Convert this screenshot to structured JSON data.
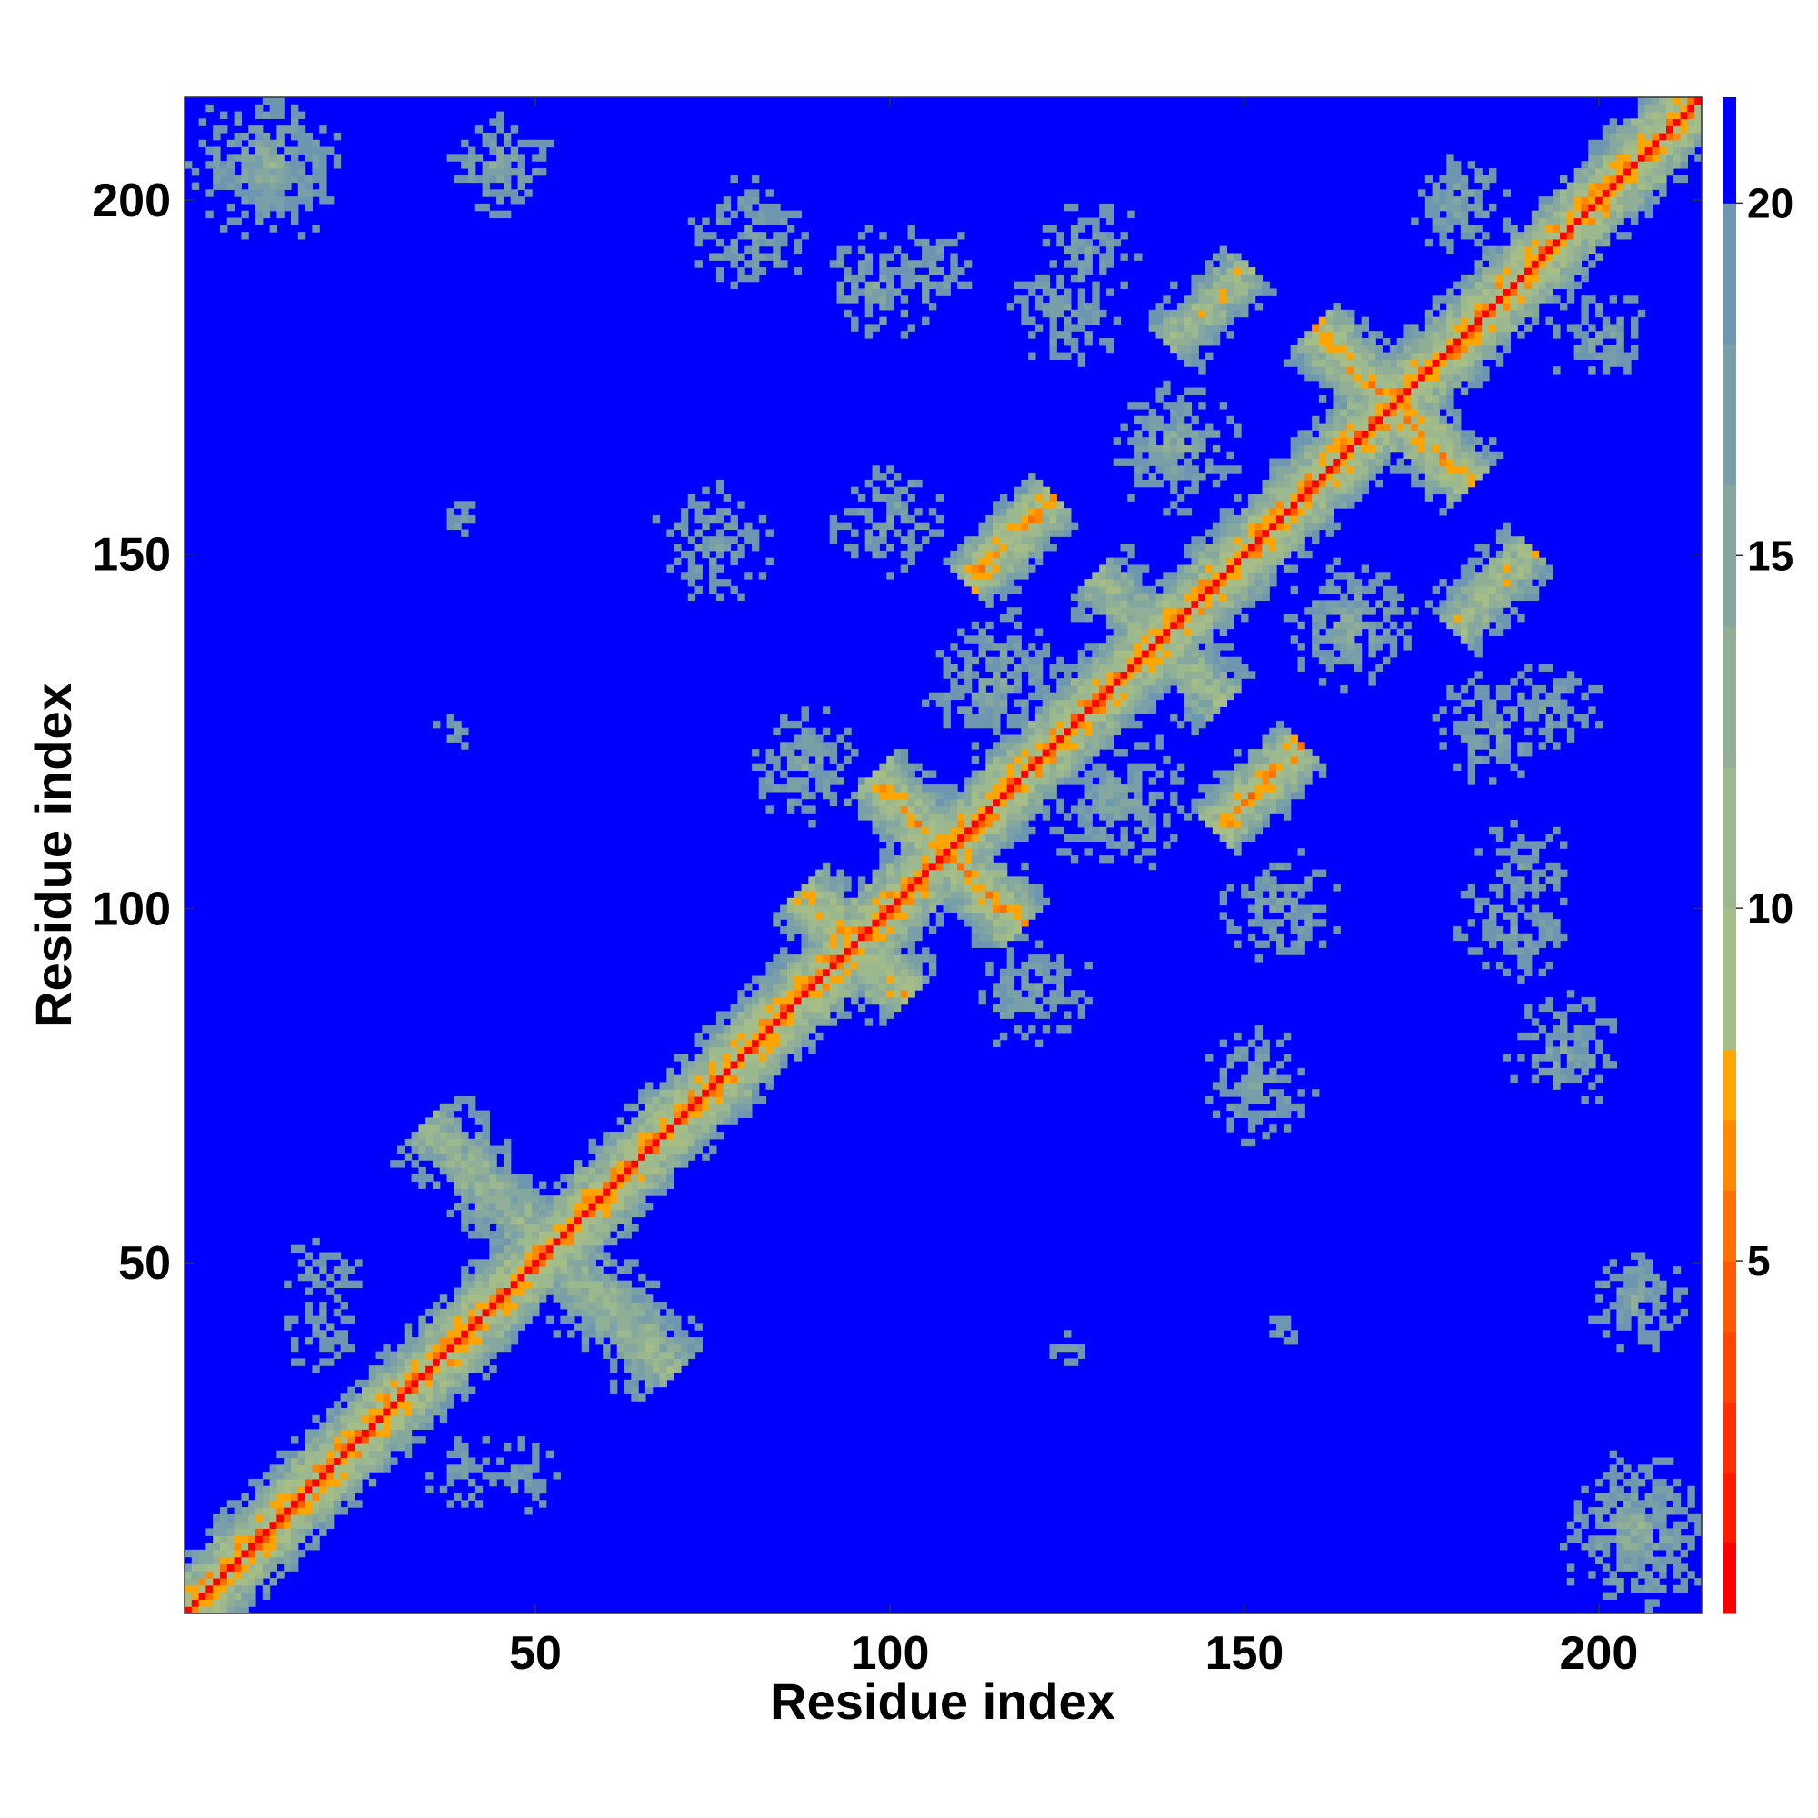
{
  "chart_data": {
    "type": "heatmap",
    "title": "",
    "xlabel": "Residue index",
    "ylabel": "Residue index",
    "x_range": [
      1,
      214
    ],
    "y_range": [
      1,
      214
    ],
    "x_ticks": [
      50,
      100,
      150,
      200
    ],
    "y_ticks": [
      50,
      100,
      150,
      200
    ],
    "colorbar": {
      "range": [
        0,
        21.5
      ],
      "ticks": [
        5,
        10,
        15,
        20
      ],
      "bands": [
        {
          "from": 0,
          "to": 1,
          "color": "#ff0000"
        },
        {
          "from": 1,
          "to": 2,
          "color": "#ff1a00"
        },
        {
          "from": 2,
          "to": 3,
          "color": "#ff2e00"
        },
        {
          "from": 3,
          "to": 4,
          "color": "#ff4500"
        },
        {
          "from": 4,
          "to": 5,
          "color": "#ff5a00"
        },
        {
          "from": 5,
          "to": 6,
          "color": "#ff7000"
        },
        {
          "from": 6,
          "to": 7,
          "color": "#ff8a00"
        },
        {
          "from": 7,
          "to": 8,
          "color": "#ffa500"
        },
        {
          "from": 8,
          "to": 10,
          "color": "#a6bd86"
        },
        {
          "from": 10,
          "to": 12,
          "color": "#9cb88e"
        },
        {
          "from": 12,
          "to": 14,
          "color": "#90af96"
        },
        {
          "from": 14,
          "to": 16,
          "color": "#84a79f"
        },
        {
          "from": 16,
          "to": 18,
          "color": "#799fa8"
        },
        {
          "from": 18,
          "to": 20,
          "color": "#6d96b1"
        },
        {
          "from": 20,
          "to": 21.5,
          "color": "#0000ff"
        }
      ]
    },
    "background_color": "#0000ff",
    "contact_regions": [
      {
        "kind": "diagonal",
        "from": 1,
        "to": 214,
        "width": 10,
        "strength": 1.0
      },
      {
        "kind": "anti",
        "center": [
          52,
          52
        ],
        "length": 50,
        "width": 8,
        "strength": 0.55
      },
      {
        "kind": "anti",
        "center": [
          95,
          95
        ],
        "length": 22,
        "width": 7,
        "strength": 0.8
      },
      {
        "kind": "anti",
        "center": [
          108,
          108
        ],
        "length": 30,
        "width": 7,
        "strength": 0.85
      },
      {
        "kind": "anti",
        "center": [
          171,
          171
        ],
        "length": 32,
        "width": 7,
        "strength": 0.85
      },
      {
        "kind": "anti",
        "center": [
          138,
          138
        ],
        "length": 26,
        "width": 7,
        "strength": 0.6
      },
      {
        "kind": "parallel",
        "center": [
          152,
          117
        ],
        "length": 18,
        "width": 6,
        "strength": 0.9
      },
      {
        "kind": "parallel",
        "center": [
          117,
          152
        ],
        "length": 18,
        "width": 6,
        "strength": 0.9
      },
      {
        "kind": "parallel",
        "center": [
          185,
          145
        ],
        "length": 16,
        "width": 6,
        "strength": 0.7
      },
      {
        "kind": "parallel",
        "center": [
          145,
          185
        ],
        "length": 16,
        "width": 6,
        "strength": 0.7
      },
      {
        "kind": "blob",
        "center": [
          12,
          205
        ],
        "radius": 12,
        "strength": 0.45
      },
      {
        "kind": "blob",
        "center": [
          205,
          12
        ],
        "radius": 12,
        "strength": 0.45
      },
      {
        "kind": "blob",
        "center": [
          45,
          205
        ],
        "radius": 8,
        "strength": 0.4
      },
      {
        "kind": "blob",
        "center": [
          205,
          45
        ],
        "radius": 8,
        "strength": 0.4
      },
      {
        "kind": "blob",
        "center": [
          80,
          195
        ],
        "radius": 9,
        "strength": 0.35
      },
      {
        "kind": "blob",
        "center": [
          195,
          80
        ],
        "radius": 9,
        "strength": 0.35
      },
      {
        "kind": "blob",
        "center": [
          105,
          190
        ],
        "radius": 8,
        "strength": 0.3
      },
      {
        "kind": "blob",
        "center": [
          190,
          105
        ],
        "radius": 8,
        "strength": 0.3
      },
      {
        "kind": "blob",
        "center": [
          125,
          185
        ],
        "radius": 9,
        "strength": 0.35
      },
      {
        "kind": "blob",
        "center": [
          185,
          125
        ],
        "radius": 9,
        "strength": 0.35
      },
      {
        "kind": "blob",
        "center": [
          140,
          165
        ],
        "radius": 10,
        "strength": 0.45
      },
      {
        "kind": "blob",
        "center": [
          165,
          140
        ],
        "radius": 10,
        "strength": 0.45
      },
      {
        "kind": "blob",
        "center": [
          115,
          132
        ],
        "radius": 11,
        "strength": 0.4
      },
      {
        "kind": "blob",
        "center": [
          132,
          115
        ],
        "radius": 11,
        "strength": 0.4
      },
      {
        "kind": "blob",
        "center": [
          88,
          120
        ],
        "radius": 9,
        "strength": 0.35
      },
      {
        "kind": "blob",
        "center": [
          120,
          88
        ],
        "radius": 9,
        "strength": 0.35
      },
      {
        "kind": "blob",
        "center": [
          75,
          152
        ],
        "radius": 9,
        "strength": 0.35
      },
      {
        "kind": "blob",
        "center": [
          152,
          75
        ],
        "radius": 9,
        "strength": 0.35
      },
      {
        "kind": "blob",
        "center": [
          155,
          100
        ],
        "radius": 9,
        "strength": 0.35
      },
      {
        "kind": "blob",
        "center": [
          100,
          155
        ],
        "radius": 9,
        "strength": 0.35
      },
      {
        "kind": "blob",
        "center": [
          188,
          98
        ],
        "radius": 9,
        "strength": 0.35
      },
      {
        "kind": "blob",
        "center": [
          98,
          188
        ],
        "radius": 9,
        "strength": 0.35
      },
      {
        "kind": "blob",
        "center": [
          193,
          128
        ],
        "radius": 8,
        "strength": 0.3
      },
      {
        "kind": "blob",
        "center": [
          128,
          193
        ],
        "radius": 8,
        "strength": 0.3
      },
      {
        "kind": "blob",
        "center": [
          200,
          180
        ],
        "radius": 8,
        "strength": 0.35
      },
      {
        "kind": "blob",
        "center": [
          180,
          200
        ],
        "radius": 8,
        "strength": 0.35
      },
      {
        "kind": "blob",
        "center": [
          40,
          155
        ],
        "radius": 3,
        "strength": 0.3
      },
      {
        "kind": "blob",
        "center": [
          155,
          40
        ],
        "radius": 3,
        "strength": 0.3
      },
      {
        "kind": "blob",
        "center": [
          38,
          125
        ],
        "radius": 3,
        "strength": 0.3
      },
      {
        "kind": "blob",
        "center": [
          125,
          38
        ],
        "radius": 3,
        "strength": 0.3
      },
      {
        "kind": "blob",
        "center": [
          20,
          48
        ],
        "radius": 6,
        "strength": 0.3
      },
      {
        "kind": "blob",
        "center": [
          48,
          20
        ],
        "radius": 6,
        "strength": 0.3
      },
      {
        "kind": "blob",
        "center": [
          40,
          20
        ],
        "radius": 6,
        "strength": 0.3
      },
      {
        "kind": "blob",
        "center": [
          20,
          40
        ],
        "radius": 6,
        "strength": 0.3
      }
    ]
  }
}
